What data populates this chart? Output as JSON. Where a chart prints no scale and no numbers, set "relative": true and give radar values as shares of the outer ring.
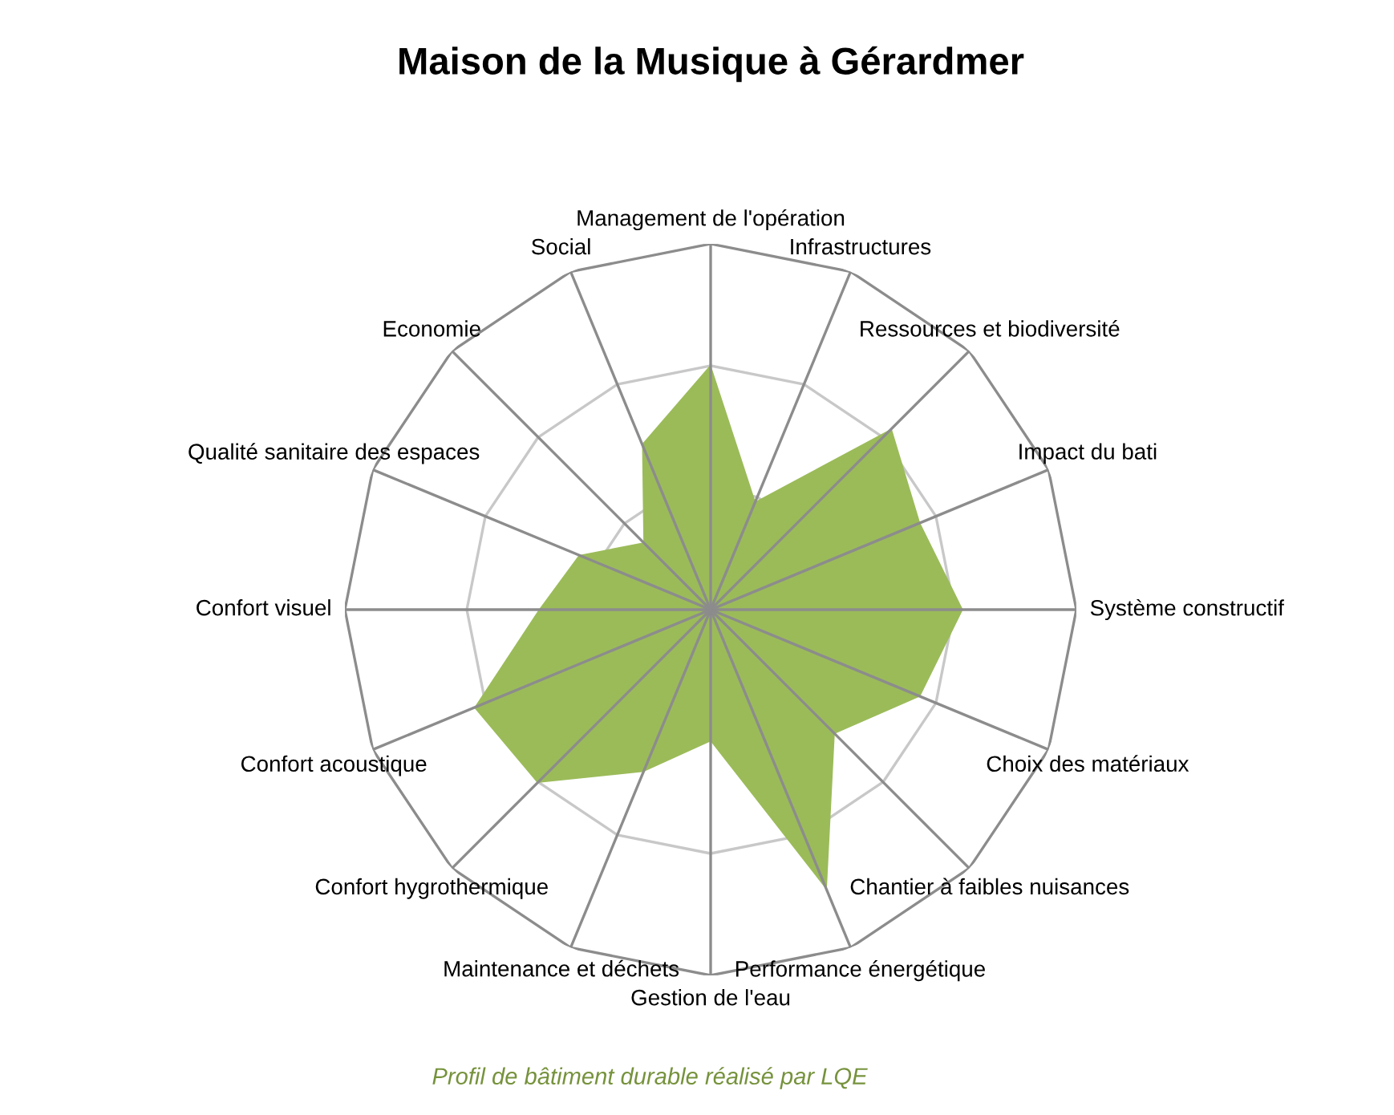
{
  "chart_data": {
    "type": "radar",
    "title": "Maison de la Musique à Gérardmer",
    "relative": true,
    "grid": true,
    "categories": [
      "Management de l'opération",
      "Infrastructures",
      "Ressources et biodiversité",
      "Impact du bati",
      "Système constructif",
      "Choix des matériaux",
      "Chantier à faibles nuisances",
      "Performance énergétique",
      "Gestion de l'eau",
      "Maintenance et déchets",
      "Confort hygrothermique",
      "Confort acoustique",
      "Confort visuel",
      "Qualité sanitaire des espaces",
      "Economie",
      "Social"
    ],
    "series": [
      {
        "color": "#9bbb59",
        "values": [
          0.67,
          0.32,
          0.7,
          0.62,
          0.69,
          0.62,
          0.48,
          0.83,
          0.36,
          0.48,
          0.67,
          0.7,
          0.47,
          0.39,
          0.26,
          0.49
        ]
      }
    ],
    "annotations": [
      "Profil de bâtiment durable réalisé par LQE"
    ]
  }
}
